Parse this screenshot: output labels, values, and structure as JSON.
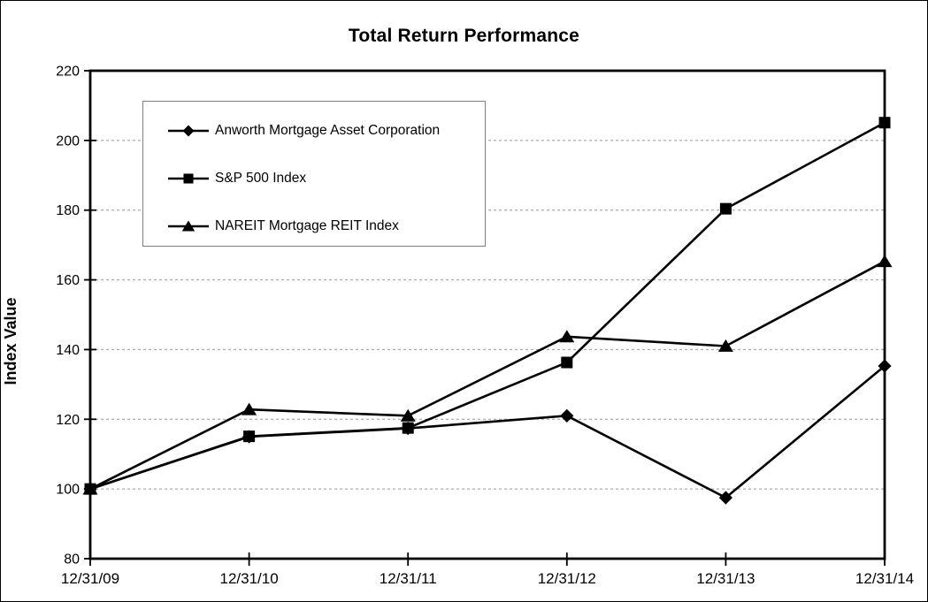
{
  "chart_data": {
    "type": "line",
    "title": "Total Return Performance",
    "ylabel": "Index Value",
    "xlabel": "",
    "ylim": [
      80,
      220
    ],
    "yticks": [
      80,
      100,
      120,
      140,
      160,
      180,
      200,
      220
    ],
    "grid": true,
    "grid_style": "dashed-gray-horizontal",
    "legend_position": "upper-left-inside",
    "categories": [
      "12/31/09",
      "12/31/10",
      "12/31/11",
      "12/31/12",
      "12/31/13",
      "12/31/14"
    ],
    "series": [
      {
        "name": "Anworth Mortgage Asset Corporation",
        "marker": "diamond",
        "color": "#000000",
        "values": [
          100,
          115.0,
          117.4,
          121.0,
          97.5,
          135.3
        ]
      },
      {
        "name": "S&P 500 Index",
        "marker": "square",
        "color": "#000000",
        "values": [
          100,
          115.1,
          117.5,
          136.3,
          180.4,
          205.1
        ]
      },
      {
        "name": "NAREIT Mortgage REIT Index",
        "marker": "triangle",
        "color": "#000000",
        "values": [
          100,
          122.8,
          121.0,
          143.7,
          141.0,
          165.3
        ]
      }
    ]
  }
}
